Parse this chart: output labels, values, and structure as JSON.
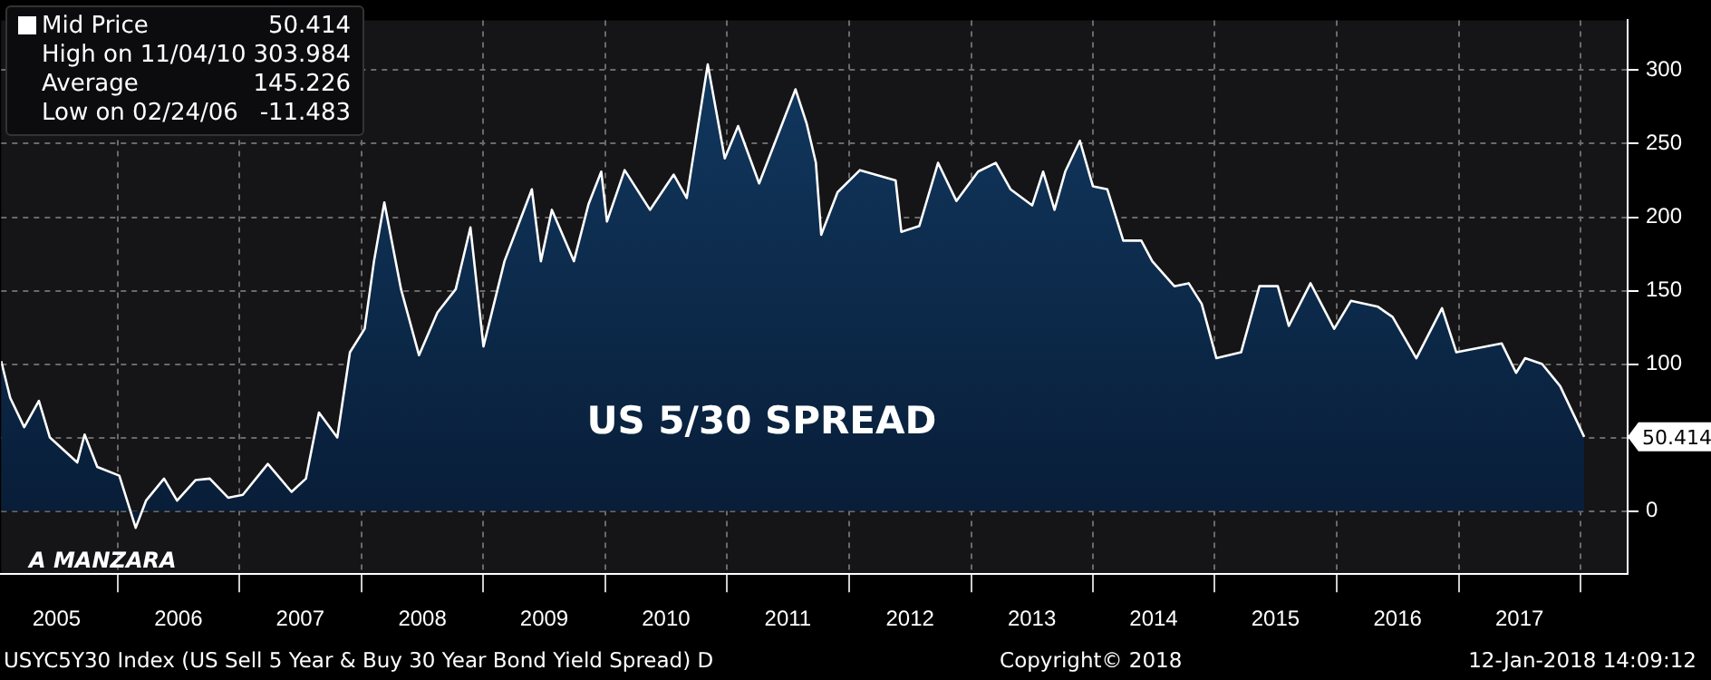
{
  "chart_data": {
    "type": "area",
    "title": "US 5/30 SPREAD",
    "x": [
      "2005-01-17",
      "2005-02-13",
      "2005-03-27",
      "2005-05-10",
      "2005-06-12",
      "2005-09-02",
      "2005-09-24",
      "2005-11-01",
      "2006-01-06",
      "2006-02-24",
      "2006-03-27",
      "2006-05-20",
      "2006-06-28",
      "2006-08-22",
      "2006-10-04",
      "2006-11-28",
      "2007-01-11",
      "2007-03-27",
      "2007-06-06",
      "2007-07-19",
      "2007-08-27",
      "2007-10-21",
      "2007-11-28",
      "2008-01-11",
      "2008-02-08",
      "2008-03-10",
      "2008-04-29",
      "2008-06-22",
      "2008-08-16",
      "2008-10-10",
      "2008-11-23",
      "2009-01-01",
      "2009-03-05",
      "2009-05-26",
      "2009-06-22",
      "2009-07-25",
      "2009-09-29",
      "2009-11-12",
      "2009-12-20",
      "2010-01-06",
      "2010-02-28",
      "2010-05-15",
      "2010-07-25",
      "2010-09-02",
      "2010-11-04",
      "2010-12-25",
      "2011-02-03",
      "2011-04-07",
      "2011-07-25",
      "2011-08-27",
      "2011-09-24",
      "2011-10-10",
      "2011-11-28",
      "2012-02-03",
      "2012-05-20",
      "2012-06-06",
      "2012-07-30",
      "2012-09-24",
      "2012-11-18",
      "2013-01-22",
      "2013-03-16",
      "2013-04-29",
      "2013-07-03",
      "2013-08-05",
      "2013-09-08",
      "2013-10-10",
      "2013-11-23",
      "2014-01-01",
      "2014-02-13",
      "2014-04-02",
      "2014-05-26",
      "2014-06-28",
      "2014-09-02",
      "2014-10-15",
      "2014-11-23",
      "2015-01-06",
      "2015-03-21",
      "2015-05-15",
      "2015-07-09",
      "2015-08-11",
      "2015-10-15",
      "2015-12-25",
      "2016-02-13",
      "2016-05-04",
      "2016-06-17",
      "2016-08-27",
      "2016-11-12",
      "2016-12-25",
      "2017-05-10",
      "2017-06-22",
      "2017-07-19",
      "2017-09-08",
      "2017-11-01",
      "2018-01-12"
    ],
    "series": [
      {
        "name": "Mid Price",
        "color": "#ffffff",
        "values": [
          102,
          77,
          57,
          75,
          50,
          33,
          52,
          30,
          24,
          -11.483,
          7,
          22,
          7,
          21,
          22,
          9,
          11,
          32,
          13,
          22,
          67,
          50,
          108,
          124,
          170,
          210,
          151,
          106,
          135,
          151,
          193,
          112,
          170,
          219,
          170,
          205,
          170,
          209,
          231,
          197,
          232,
          205,
          229,
          213,
          303.984,
          240,
          262,
          223,
          287,
          264,
          237,
          188,
          217,
          232,
          225,
          190,
          194,
          237,
          211,
          231,
          237,
          219,
          208,
          231,
          205,
          231,
          252,
          221,
          219,
          184,
          184,
          170,
          153,
          155,
          141,
          104,
          108,
          153,
          153,
          126,
          155,
          124,
          143,
          139,
          132,
          104,
          138,
          108,
          114,
          94,
          104,
          100,
          85,
          50.414
        ]
      }
    ],
    "xlim": [
      "2005-01-17",
      "2018-05-22"
    ],
    "xticks": [
      {
        "value": "2005-07-02",
        "label": "2005"
      },
      {
        "value": "2006-01-01",
        "label": null
      },
      {
        "value": "2006-07-02",
        "label": "2006"
      },
      {
        "value": "2007-01-01",
        "label": null
      },
      {
        "value": "2007-07-02",
        "label": "2007"
      },
      {
        "value": "2008-01-01",
        "label": null
      },
      {
        "value": "2008-07-02",
        "label": "2008"
      },
      {
        "value": "2009-01-01",
        "label": null
      },
      {
        "value": "2009-07-02",
        "label": "2009"
      },
      {
        "value": "2010-01-01",
        "label": null
      },
      {
        "value": "2010-07-02",
        "label": "2010"
      },
      {
        "value": "2011-01-01",
        "label": null
      },
      {
        "value": "2011-07-02",
        "label": "2011"
      },
      {
        "value": "2012-01-01",
        "label": null
      },
      {
        "value": "2012-07-02",
        "label": "2012"
      },
      {
        "value": "2013-01-01",
        "label": null
      },
      {
        "value": "2013-07-02",
        "label": "2013"
      },
      {
        "value": "2014-01-01",
        "label": null
      },
      {
        "value": "2014-07-02",
        "label": "2014"
      },
      {
        "value": "2015-01-01",
        "label": null
      },
      {
        "value": "2015-07-02",
        "label": "2015"
      },
      {
        "value": "2016-01-01",
        "label": null
      },
      {
        "value": "2016-07-02",
        "label": "2016"
      },
      {
        "value": "2017-01-01",
        "label": null
      },
      {
        "value": "2017-07-02",
        "label": "2017"
      },
      {
        "value": "2018-01-01",
        "label": null
      }
    ],
    "ylim": [
      -43,
      334
    ],
    "yticks": [
      0,
      {
        "value": 50,
        "label": null
      },
      100,
      150,
      200,
      250,
      300
    ],
    "grid": true,
    "legend": "top left",
    "marker": "none",
    "line_style": "solid",
    "annotations": [
      {
        "text": "50.414",
        "x": "2018-01-12",
        "y": 50.414
      },
      "High on 11/04/10 303.984",
      "Average 145.226",
      "Low on 02/24/06 -11.483",
      "A MANZARA",
      "USYC5Y30 Index (US Sell 5 Year & Buy 30 Year Bond Yield Spread) D",
      "Copyright© 2018",
      "12-Jan-2018 14:09:12"
    ]
  }
}
